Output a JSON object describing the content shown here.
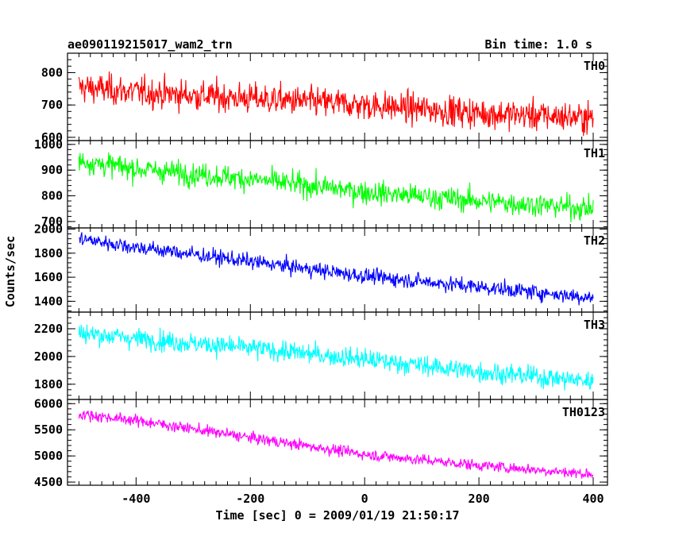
{
  "header": {
    "title": "ae090119215017_wam2_trn",
    "bin_time": "Bin time: 1.0 s"
  },
  "chart_data": {
    "type": "line",
    "title": "ae090119215017_wam2_trn",
    "subtitle": "Bin time: 1.0 s",
    "xlabel": "Time [sec] 0 = 2009/01/19 21:50:17",
    "ylabel": "Counts/sec",
    "xlim": [
      -520,
      425
    ],
    "x_ticks": [
      -400,
      -200,
      0,
      200,
      400
    ],
    "x_range_data": [
      -500,
      400
    ],
    "bin_time_s": 1.0,
    "grid": false,
    "legend": "panel labels at top-right of each panel",
    "panels": [
      {
        "name": "TH0",
        "color": "#ff0000",
        "ylim": [
          590,
          860
        ],
        "y_ticks": [
          600,
          700,
          800
        ],
        "trend": {
          "x": [
            -500,
            -400,
            -200,
            0,
            200,
            400
          ],
          "y": [
            755,
            740,
            720,
            700,
            675,
            660
          ]
        },
        "noise_sigma": 33
      },
      {
        "name": "TH1",
        "color": "#00ff00",
        "ylim": [
          675,
          1015
        ],
        "y_ticks": [
          700,
          800,
          900,
          1000
        ],
        "trend": {
          "x": [
            -500,
            -400,
            -200,
            0,
            200,
            400
          ],
          "y": [
            935,
            905,
            865,
            815,
            780,
            750
          ]
        },
        "noise_sigma": 32
      },
      {
        "name": "TH2",
        "color": "#0000ff",
        "ylim": [
          1310,
          2010
        ],
        "y_ticks": [
          1400,
          1600,
          1800,
          2000
        ],
        "trend": {
          "x": [
            -500,
            -400,
            -200,
            0,
            200,
            400
          ],
          "y": [
            1920,
            1850,
            1730,
            1610,
            1520,
            1430
          ]
        },
        "noise_sigma": 45
      },
      {
        "name": "TH3",
        "color": "#00ffff",
        "ylim": [
          1690,
          2320
        ],
        "y_ticks": [
          1800,
          2000,
          2200
        ],
        "trend": {
          "x": [
            -500,
            -400,
            -200,
            0,
            200,
            400
          ],
          "y": [
            2170,
            2130,
            2060,
            1980,
            1890,
            1820
          ]
        },
        "noise_sigma": 52
      },
      {
        "name": "TH0123",
        "color": "#ff00ff",
        "ylim": [
          4440,
          6080
        ],
        "y_ticks": [
          4500,
          5000,
          5500,
          6000
        ],
        "trend": {
          "x": [
            -500,
            -400,
            -200,
            0,
            200,
            400
          ],
          "y": [
            5800,
            5680,
            5350,
            5030,
            4820,
            4650
          ]
        },
        "noise_sigma": 75
      }
    ]
  }
}
